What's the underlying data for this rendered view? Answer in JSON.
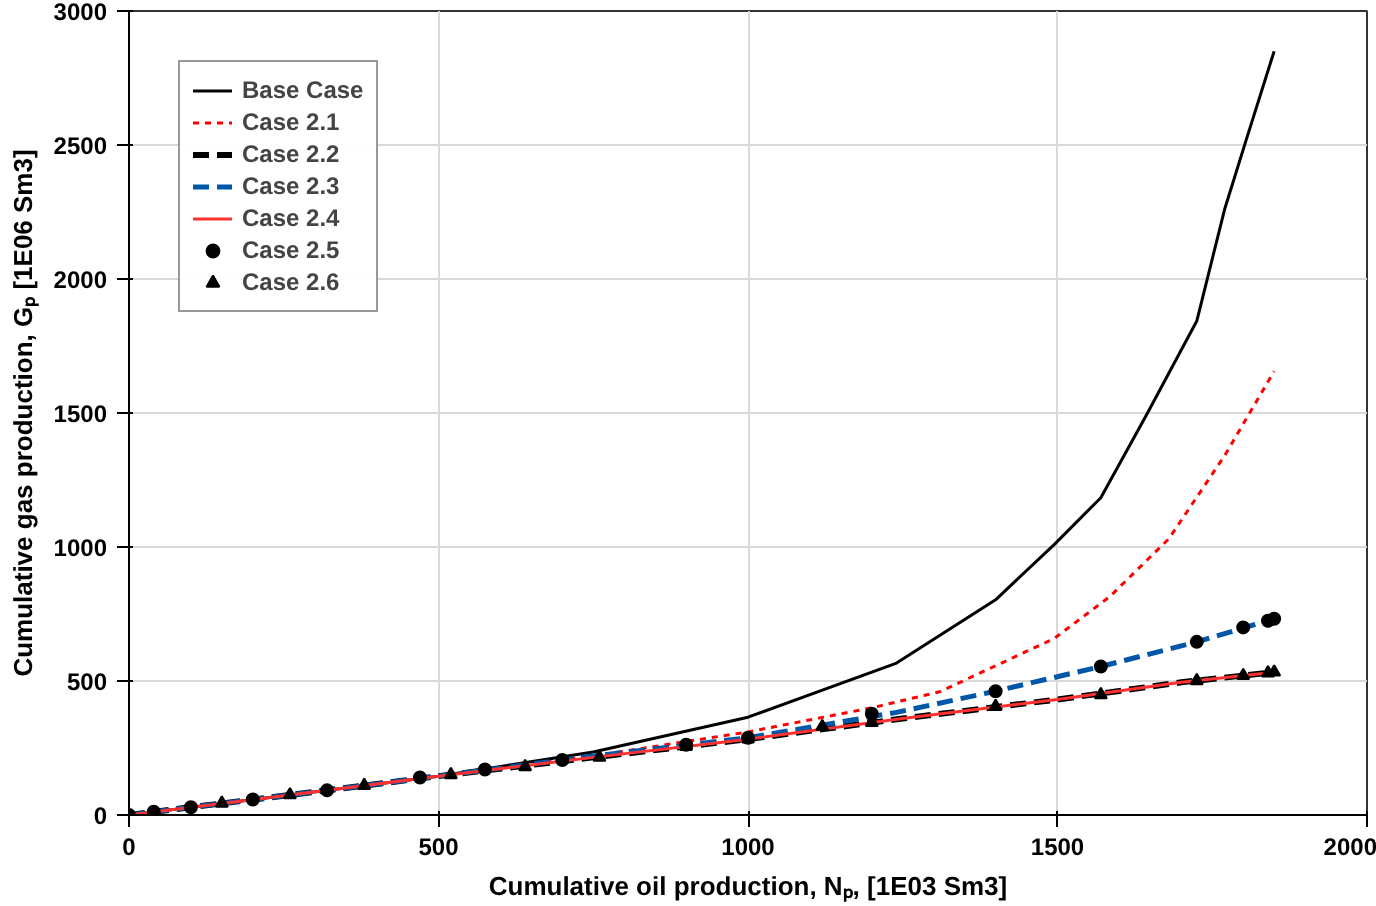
{
  "chart_data": {
    "type": "line",
    "xlabel": "Cumulative oil production, Nₚ, [1E03 Sm3]",
    "ylabel": "Cumulative gas production, Gₚ [1E06 Sm3]",
    "xlim": [
      0,
      2000
    ],
    "ylim": [
      0,
      3000
    ],
    "xticks": [
      0,
      500,
      1000,
      1500,
      2000
    ],
    "yticks": [
      0,
      500,
      1000,
      1500,
      2000,
      2500,
      3000
    ],
    "grid": true,
    "legend": "top left",
    "series": [
      {
        "name": "Base Case",
        "color": "#000000",
        "line_style": "solid",
        "x": [
          0,
          250,
          500,
          750,
          1000,
          1240,
          1400,
          1495,
          1570,
          1645,
          1725,
          1770,
          1805,
          1850
        ],
        "values": [
          0,
          72,
          145,
          235,
          365,
          567,
          803,
          1010,
          1184,
          1498,
          1843,
          2260,
          2520,
          2850
        ]
      },
      {
        "name": "Case 2.1",
        "color": "#ff0000",
        "line_style": "dotted",
        "x": [
          0,
          250,
          500,
          750,
          1000,
          1200,
          1310,
          1495,
          1585,
          1680,
          1770,
          1850
        ],
        "values": [
          0,
          72,
          145,
          220,
          310,
          400,
          460,
          659,
          816,
          1031,
          1341,
          1656
        ]
      },
      {
        "name": "Case 2.2",
        "color": "#000000",
        "line_style": "dashed",
        "x": [
          0,
          250,
          500,
          750,
          1000,
          1250,
          1500,
          1700,
          1850
        ],
        "values": [
          0,
          72,
          145,
          215,
          283,
          360,
          431,
          495,
          533
        ]
      },
      {
        "name": "Case 2.3",
        "color": "#0057a8",
        "line_style": "dashed",
        "x": [
          0,
          250,
          500,
          750,
          1000,
          1240,
          1400,
          1570,
          1725,
          1850
        ],
        "values": [
          0,
          72,
          145,
          220,
          288,
          383,
          462,
          554,
          646,
          732
        ]
      },
      {
        "name": "Case 2.4",
        "color": "#ff3030",
        "line_style": "solid",
        "x": [
          0,
          250,
          500,
          750,
          1000,
          1250,
          1500,
          1700,
          1850
        ],
        "values": [
          0,
          72,
          145,
          215,
          283,
          360,
          431,
          495,
          533
        ]
      },
      {
        "name": "Case 2.5",
        "type": "scatter",
        "marker": "circle",
        "color": "#000000",
        "x": [
          0,
          40,
          100,
          200,
          320,
          470,
          575,
          700,
          900,
          1000,
          1200,
          1400,
          1570,
          1725,
          1800,
          1840,
          1850
        ],
        "values": [
          0,
          12,
          29,
          58,
          92,
          140,
          170,
          205,
          262,
          288,
          378,
          462,
          554,
          646,
          700,
          725,
          732
        ]
      },
      {
        "name": "Case 2.6",
        "type": "scatter",
        "marker": "triangle",
        "color": "#000000",
        "x": [
          150,
          260,
          380,
          520,
          640,
          760,
          900,
          1000,
          1120,
          1200,
          1400,
          1570,
          1725,
          1800,
          1840,
          1850
        ],
        "values": [
          44,
          75,
          110,
          150,
          180,
          215,
          255,
          283,
          330,
          345,
          405,
          449,
          501,
          520,
          530,
          533
        ]
      }
    ]
  }
}
